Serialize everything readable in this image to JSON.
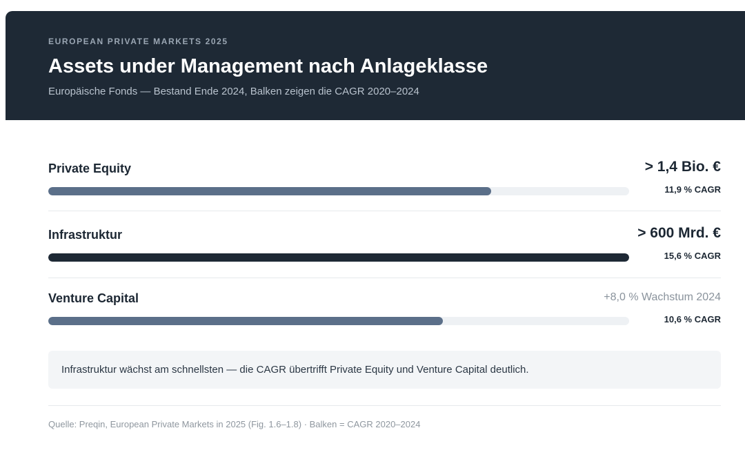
{
  "header": {
    "eyebrow": "EUROPEAN PRIVATE MARKETS 2025",
    "title": "Assets under Management nach Anlageklasse",
    "subtitle": "Europäische Fonds — Bestand Ende 2024, Balken zeigen die CAGR 2020–2024"
  },
  "chart_data": {
    "type": "bar",
    "orientation": "horizontal",
    "title": "Assets under Management nach Anlageklasse",
    "categories": [
      "Private Equity",
      "Infrastruktur",
      "Venture Capital"
    ],
    "values": [
      11.9,
      15.6,
      10.6
    ],
    "value_labels": [
      "11,9 % CAGR",
      "15,6 % CAGR",
      "10,6 % CAGR"
    ],
    "headline_values": [
      "> 1,4 Bio. €",
      "> 600 Mrd. €",
      "+8,0 % Wachstum 2024"
    ],
    "headline_muted": [
      false,
      false,
      true
    ],
    "highlight_index": 1,
    "xlim": [
      0,
      15.6
    ],
    "grid": false,
    "colors": {
      "default": "#5b6f89",
      "highlight": "#1e2935",
      "track": "#eef1f4"
    }
  },
  "callout": {
    "text": "Infrastruktur wächst am schnellsten — die CAGR übertrifft Private Equity und Venture Capital deutlich."
  },
  "footer": {
    "source": "Quelle: Preqin, European Private Markets in 2025 (Fig. 1.6–1.8) · Balken = CAGR 2020–2024"
  }
}
